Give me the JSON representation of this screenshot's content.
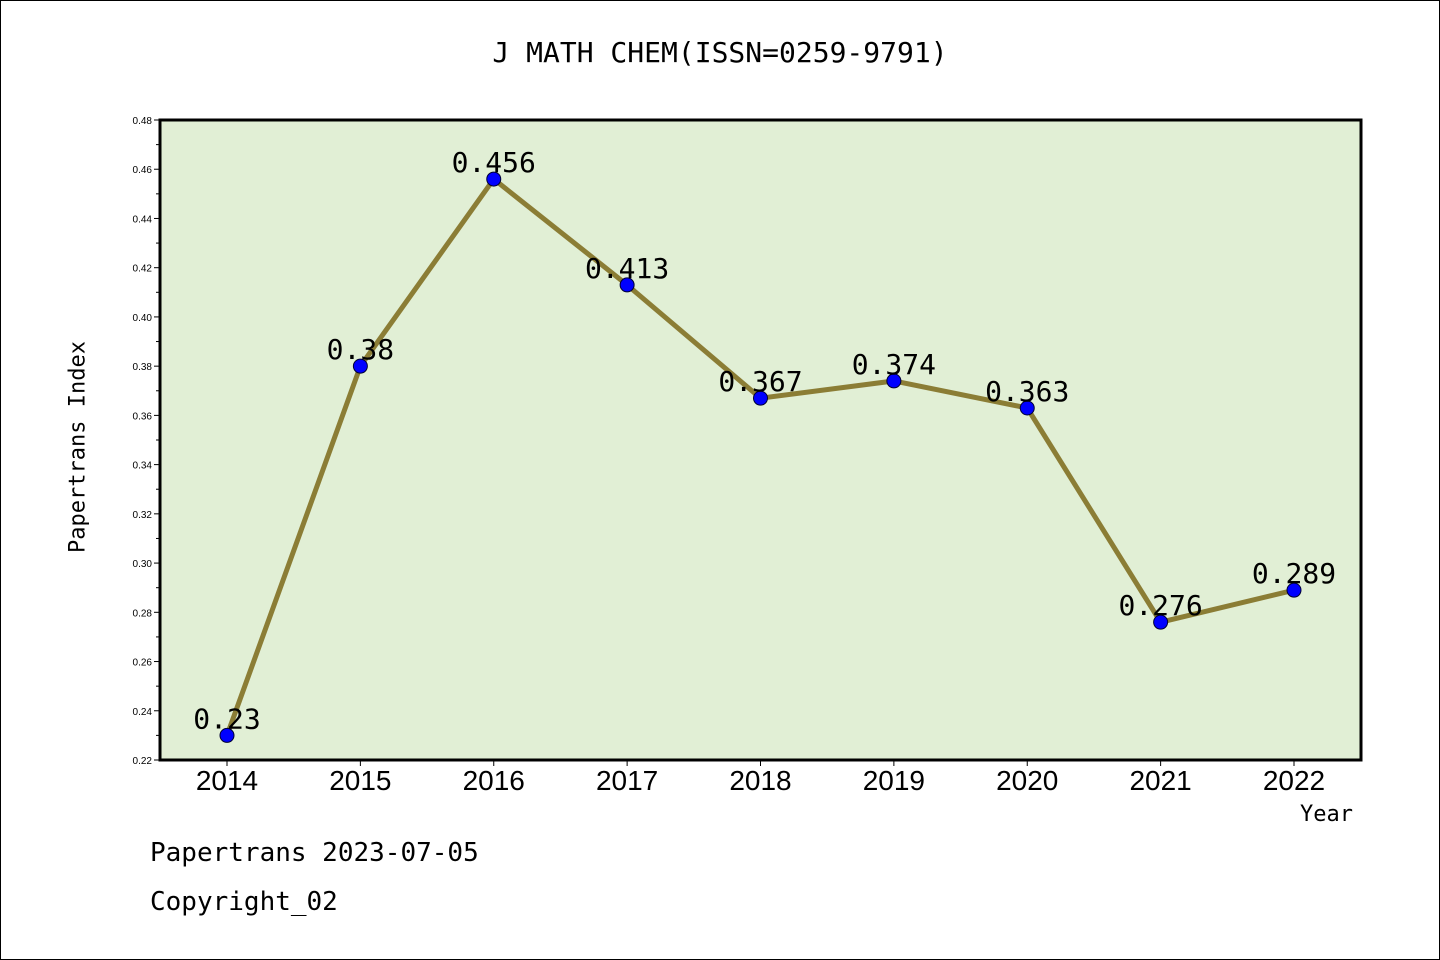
{
  "chart_data": {
    "type": "line",
    "title": "J MATH CHEM(ISSN=0259-9791)",
    "xlabel": "Year",
    "ylabel": "Papertrans Index",
    "categories": [
      "2014",
      "2015",
      "2016",
      "2017",
      "2018",
      "2019",
      "2020",
      "2021",
      "2022"
    ],
    "values": [
      0.23,
      0.38,
      0.456,
      0.413,
      0.367,
      0.374,
      0.363,
      0.276,
      0.289
    ],
    "data_labels": [
      "0.23",
      "0.38",
      "0.456",
      "0.413",
      "0.367",
      "0.374",
      "0.363",
      "0.276",
      "0.289"
    ],
    "ylim": [
      0.22,
      0.48
    ],
    "yticks": [
      "0.22",
      "0.24",
      "0.26",
      "0.28",
      "0.30",
      "0.32",
      "0.34",
      "0.36",
      "0.38",
      "0.40",
      "0.42",
      "0.44",
      "0.46",
      "0.48"
    ],
    "grid": false,
    "colors": {
      "plot_background": "#e1efd5",
      "line": "#8b7d35",
      "marker": "#0000ff"
    }
  },
  "footer": {
    "line1": "Papertrans 2023-07-05",
    "line2": "Copyright_02"
  }
}
